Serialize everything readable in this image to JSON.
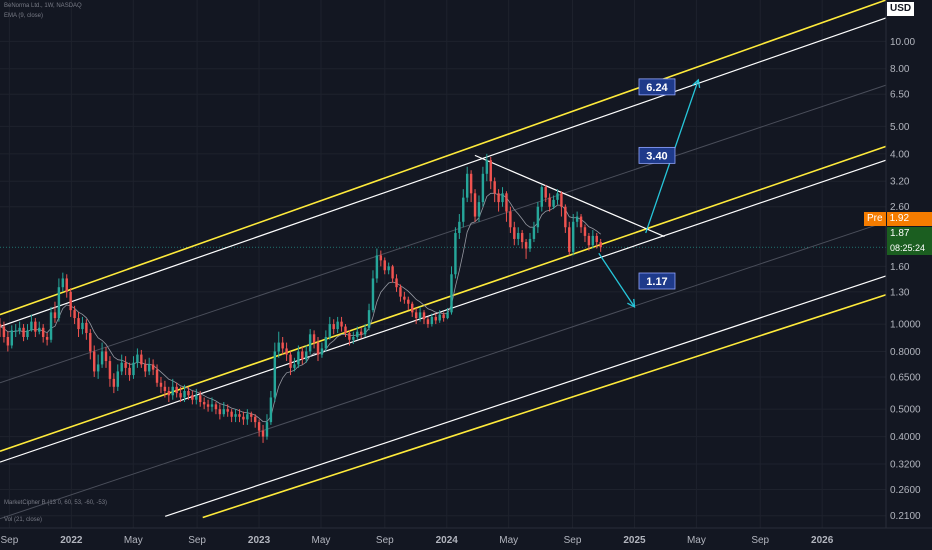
{
  "header": {
    "symbol_line": "BeNorma Ltd., 1W, NASDAQ",
    "indicator_ema": "EMA (9, close)",
    "indicator_market_cipher": "MarketCipher B (13 0, 60, 53, -60, -53)",
    "indicator_vol": "Vol (21, close)"
  },
  "price_scale": {
    "currency": "USD",
    "pre_label": "Pre",
    "pre_value": "1.92",
    "last_price": "1.87",
    "countdown": "08:25:24",
    "colors": {
      "pre_bg": "#f57c00",
      "last_bg": "#1b5e20",
      "currency_bg": "#ffffff"
    }
  },
  "chart_data": {
    "type": "candlestick",
    "y_scale": "log",
    "yticks": [
      "10.00",
      "8.00",
      "6.50",
      "5.00",
      "4.00",
      "3.20",
      "2.60",
      "1.60",
      "1.30",
      "1.0000",
      "0.8000",
      "0.6500",
      "0.5000",
      "0.4000",
      "0.3200",
      "0.2600",
      "0.2100"
    ],
    "ytick_values": [
      10,
      8,
      6.5,
      5,
      4,
      3.2,
      2.6,
      1.6,
      1.3,
      1,
      0.8,
      0.65,
      0.5,
      0.4,
      0.32,
      0.26,
      0.21
    ],
    "ylim": [
      0.19,
      14
    ],
    "xticks": [
      "Sep",
      "2022",
      "May",
      "Sep",
      "2023",
      "May",
      "Sep",
      "2024",
      "May",
      "Sep",
      "2025",
      "May",
      "Sep",
      "2026"
    ],
    "xtick_values": [
      2021.67,
      2022.0,
      2022.33,
      2022.67,
      2023.0,
      2023.33,
      2023.67,
      2024.0,
      2024.33,
      2024.67,
      2025.0,
      2025.33,
      2025.67,
      2026.0
    ],
    "xlim": [
      2021.62,
      2026.34
    ],
    "annotations": [
      {
        "label": "6.24",
        "x": 2025.12,
        "y": 6.9
      },
      {
        "label": "3.40",
        "x": 2025.12,
        "y": 3.95
      },
      {
        "label": "1.17",
        "x": 2025.12,
        "y": 1.42
      }
    ],
    "projection_arrows": [
      {
        "from": [
          2025.06,
          2.1
        ],
        "to": [
          2025.34,
          7.3
        ]
      },
      {
        "from": [
          2024.81,
          1.78
        ],
        "to": [
          2025.0,
          1.15
        ]
      }
    ],
    "channels": {
      "yellow": [
        {
          "from": [
            2021.62,
            1.08
          ],
          "to": [
            2026.34,
            14.0
          ]
        },
        {
          "from": [
            2021.62,
            0.355
          ],
          "to": [
            2026.34,
            4.25
          ]
        },
        {
          "from": [
            2022.7,
            0.207
          ],
          "to": [
            2026.34,
            1.27
          ]
        }
      ],
      "white": [
        {
          "from": [
            2021.62,
            0.98
          ],
          "to": [
            2026.34,
            12.1
          ]
        },
        {
          "from": [
            2021.62,
            0.325
          ],
          "to": [
            2026.34,
            3.8
          ]
        },
        {
          "from": [
            2022.5,
            0.209
          ],
          "to": [
            2026.34,
            1.48
          ]
        }
      ],
      "gray": [
        {
          "from": [
            2021.62,
            0.62
          ],
          "to": [
            2026.34,
            7.0
          ]
        },
        {
          "from": [
            2021.62,
            0.205
          ],
          "to": [
            2026.34,
            2.3
          ]
        }
      ],
      "downtrend": {
        "from": [
          2024.15,
          3.95
        ],
        "to": [
          2025.16,
          2.04
        ]
      }
    },
    "candles": [
      [
        1.0,
        0.98,
        1.05,
        0.9
      ],
      [
        0.98,
        0.9,
        1.02,
        0.86
      ],
      [
        0.9,
        0.84,
        0.94,
        0.8
      ],
      [
        0.84,
        0.95,
        0.99,
        0.82
      ],
      [
        0.95,
        0.95,
        1.0,
        0.9
      ],
      [
        0.95,
        0.97,
        1.02,
        0.92
      ],
      [
        0.97,
        0.9,
        1.0,
        0.87
      ],
      [
        0.9,
        0.95,
        1.0,
        0.88
      ],
      [
        0.95,
        1.02,
        1.08,
        0.94
      ],
      [
        1.02,
        0.94,
        1.05,
        0.9
      ],
      [
        0.94,
        0.97,
        1.02,
        0.92
      ],
      [
        0.97,
        0.9,
        1.0,
        0.86
      ],
      [
        0.9,
        0.88,
        0.93,
        0.84
      ],
      [
        0.88,
        1.1,
        1.15,
        0.86
      ],
      [
        1.1,
        1.05,
        1.2,
        1.01
      ],
      [
        1.05,
        1.35,
        1.45,
        1.02
      ],
      [
        1.35,
        1.45,
        1.52,
        1.3
      ],
      [
        1.45,
        1.3,
        1.5,
        1.24
      ],
      [
        1.3,
        1.12,
        1.34,
        1.06
      ],
      [
        1.12,
        1.05,
        1.16,
        1.0
      ],
      [
        1.05,
        0.96,
        1.1,
        0.9
      ],
      [
        0.96,
        1.01,
        1.06,
        0.92
      ],
      [
        1.01,
        0.93,
        1.04,
        0.88
      ],
      [
        0.93,
        0.8,
        0.96,
        0.75
      ],
      [
        0.8,
        0.68,
        0.84,
        0.65
      ],
      [
        0.68,
        0.72,
        0.78,
        0.64
      ],
      [
        0.72,
        0.8,
        0.86,
        0.7
      ],
      [
        0.8,
        0.74,
        0.83,
        0.7
      ],
      [
        0.74,
        0.64,
        0.77,
        0.6
      ],
      [
        0.64,
        0.6,
        0.67,
        0.57
      ],
      [
        0.6,
        0.68,
        0.72,
        0.58
      ],
      [
        0.68,
        0.73,
        0.78,
        0.66
      ],
      [
        0.73,
        0.7,
        0.77,
        0.66
      ],
      [
        0.7,
        0.66,
        0.73,
        0.63
      ],
      [
        0.66,
        0.73,
        0.77,
        0.64
      ],
      [
        0.73,
        0.78,
        0.82,
        0.7
      ],
      [
        0.78,
        0.72,
        0.81,
        0.7
      ],
      [
        0.72,
        0.68,
        0.75,
        0.65
      ],
      [
        0.68,
        0.72,
        0.76,
        0.66
      ],
      [
        0.72,
        0.69,
        0.75,
        0.66
      ],
      [
        0.69,
        0.62,
        0.72,
        0.6
      ],
      [
        0.62,
        0.6,
        0.65,
        0.57
      ],
      [
        0.6,
        0.58,
        0.63,
        0.55
      ],
      [
        0.58,
        0.56,
        0.6,
        0.53
      ],
      [
        0.56,
        0.6,
        0.64,
        0.54
      ],
      [
        0.6,
        0.57,
        0.62,
        0.55
      ],
      [
        0.57,
        0.55,
        0.6,
        0.53
      ],
      [
        0.55,
        0.58,
        0.61,
        0.53
      ],
      [
        0.58,
        0.56,
        0.6,
        0.54
      ],
      [
        0.56,
        0.54,
        0.58,
        0.52
      ],
      [
        0.54,
        0.56,
        0.59,
        0.52
      ],
      [
        0.56,
        0.53,
        0.58,
        0.51
      ],
      [
        0.53,
        0.52,
        0.55,
        0.5
      ],
      [
        0.52,
        0.51,
        0.54,
        0.49
      ],
      [
        0.51,
        0.52,
        0.55,
        0.49
      ],
      [
        0.52,
        0.5,
        0.53,
        0.48
      ],
      [
        0.5,
        0.48,
        0.52,
        0.46
      ],
      [
        0.48,
        0.5,
        0.53,
        0.47
      ],
      [
        0.5,
        0.49,
        0.52,
        0.47
      ],
      [
        0.49,
        0.47,
        0.5,
        0.45
      ],
      [
        0.47,
        0.48,
        0.5,
        0.45
      ],
      [
        0.48,
        0.47,
        0.5,
        0.45
      ],
      [
        0.47,
        0.46,
        0.49,
        0.44
      ],
      [
        0.46,
        0.48,
        0.5,
        0.44
      ],
      [
        0.48,
        0.47,
        0.49,
        0.45
      ],
      [
        0.47,
        0.45,
        0.48,
        0.43
      ],
      [
        0.45,
        0.42,
        0.46,
        0.4
      ],
      [
        0.42,
        0.4,
        0.44,
        0.38
      ],
      [
        0.4,
        0.45,
        0.48,
        0.39
      ],
      [
        0.45,
        0.55,
        0.58,
        0.44
      ],
      [
        0.55,
        0.8,
        0.86,
        0.53
      ],
      [
        0.8,
        0.86,
        0.94,
        0.76
      ],
      [
        0.86,
        0.82,
        0.9,
        0.78
      ],
      [
        0.82,
        0.78,
        0.86,
        0.74
      ],
      [
        0.78,
        0.7,
        0.8,
        0.66
      ],
      [
        0.7,
        0.72,
        0.76,
        0.68
      ],
      [
        0.72,
        0.8,
        0.84,
        0.7
      ],
      [
        0.8,
        0.75,
        0.83,
        0.72
      ],
      [
        0.75,
        0.8,
        0.84,
        0.73
      ],
      [
        0.8,
        0.92,
        0.96,
        0.78
      ],
      [
        0.92,
        0.86,
        0.95,
        0.82
      ],
      [
        0.86,
        0.78,
        0.9,
        0.74
      ],
      [
        0.78,
        0.82,
        0.86,
        0.76
      ],
      [
        0.82,
        0.9,
        0.95,
        0.8
      ],
      [
        0.9,
        1.0,
        1.06,
        0.88
      ],
      [
        1.0,
        0.96,
        1.04,
        0.92
      ],
      [
        0.96,
        1.02,
        1.06,
        0.93
      ],
      [
        1.02,
        0.98,
        1.06,
        0.94
      ],
      [
        0.98,
        0.93,
        1.0,
        0.9
      ],
      [
        0.93,
        0.88,
        0.95,
        0.84
      ],
      [
        0.88,
        0.9,
        0.94,
        0.85
      ],
      [
        0.9,
        0.94,
        0.98,
        0.88
      ],
      [
        0.94,
        0.92,
        0.97,
        0.89
      ],
      [
        0.92,
        0.97,
        1.0,
        0.9
      ],
      [
        0.97,
        1.12,
        1.18,
        0.95
      ],
      [
        1.12,
        1.45,
        1.55,
        1.1
      ],
      [
        1.45,
        1.75,
        1.85,
        1.4
      ],
      [
        1.75,
        1.68,
        1.82,
        1.6
      ],
      [
        1.68,
        1.55,
        1.72,
        1.5
      ],
      [
        1.55,
        1.6,
        1.65,
        1.5
      ],
      [
        1.6,
        1.45,
        1.62,
        1.4
      ],
      [
        1.45,
        1.35,
        1.5,
        1.3
      ],
      [
        1.35,
        1.25,
        1.38,
        1.2
      ],
      [
        1.25,
        1.22,
        1.3,
        1.18
      ],
      [
        1.22,
        1.18,
        1.25,
        1.12
      ],
      [
        1.18,
        1.1,
        1.2,
        1.06
      ],
      [
        1.1,
        1.05,
        1.14,
        1.0
      ],
      [
        1.05,
        1.1,
        1.15,
        1.02
      ],
      [
        1.1,
        1.04,
        1.12,
        1.0
      ],
      [
        1.04,
        1.0,
        1.06,
        0.97
      ],
      [
        1.0,
        1.06,
        1.09,
        0.98
      ],
      [
        1.06,
        1.03,
        1.09,
        1.0
      ],
      [
        1.03,
        1.08,
        1.12,
        1.01
      ],
      [
        1.08,
        1.05,
        1.1,
        1.02
      ],
      [
        1.05,
        1.1,
        1.14,
        1.04
      ],
      [
        1.1,
        1.5,
        1.6,
        1.08
      ],
      [
        1.5,
        2.1,
        2.2,
        1.45
      ],
      [
        2.1,
        2.3,
        2.45,
        2.0
      ],
      [
        2.3,
        2.8,
        3.0,
        2.2
      ],
      [
        2.8,
        3.4,
        3.6,
        2.7
      ],
      [
        3.4,
        2.9,
        3.5,
        2.7
      ],
      [
        2.9,
        2.4,
        3.0,
        2.3
      ],
      [
        2.4,
        2.7,
        2.85,
        2.3
      ],
      [
        2.7,
        3.4,
        3.6,
        2.6
      ],
      [
        3.4,
        3.8,
        4.0,
        3.2
      ],
      [
        3.8,
        3.2,
        3.9,
        3.0
      ],
      [
        3.2,
        2.9,
        3.3,
        2.7
      ],
      [
        2.9,
        2.7,
        3.0,
        2.5
      ],
      [
        2.7,
        2.9,
        3.05,
        2.6
      ],
      [
        2.9,
        2.5,
        2.95,
        2.3
      ],
      [
        2.5,
        2.2,
        2.6,
        2.1
      ],
      [
        2.2,
        2.0,
        2.3,
        1.9
      ],
      [
        2.0,
        2.1,
        2.2,
        1.9
      ],
      [
        2.1,
        1.95,
        2.15,
        1.85
      ],
      [
        1.95,
        1.85,
        2.0,
        1.7
      ],
      [
        1.85,
        2.0,
        2.1,
        1.8
      ],
      [
        2.0,
        2.2,
        2.3,
        1.95
      ],
      [
        2.2,
        2.6,
        2.7,
        2.1
      ],
      [
        2.6,
        3.05,
        3.1,
        2.5
      ],
      [
        3.05,
        2.8,
        3.1,
        2.7
      ],
      [
        2.8,
        2.6,
        2.9,
        2.5
      ],
      [
        2.6,
        2.75,
        2.85,
        2.55
      ],
      [
        2.75,
        2.9,
        3.0,
        2.65
      ],
      [
        2.9,
        2.6,
        2.95,
        2.4
      ],
      [
        2.6,
        2.2,
        2.65,
        2.1
      ],
      [
        2.2,
        1.8,
        2.3,
        1.75
      ],
      [
        1.8,
        2.3,
        2.45,
        1.75
      ],
      [
        2.3,
        2.4,
        2.5,
        2.2
      ],
      [
        2.4,
        2.2,
        2.45,
        2.1
      ],
      [
        2.2,
        2.05,
        2.25,
        1.95
      ],
      [
        2.05,
        1.9,
        2.1,
        1.82
      ],
      [
        1.9,
        2.05,
        2.15,
        1.85
      ],
      [
        2.05,
        1.95,
        2.1,
        1.85
      ],
      [
        1.95,
        1.87,
        2.0,
        1.8
      ]
    ],
    "candle_x_start": 2021.62,
    "candle_x_end": 2024.82,
    "colors": {
      "up": "#26a69a",
      "down": "#ef5350",
      "yellow": "#ffeb3b",
      "white": "#ffffff",
      "gray": "#787b86",
      "arrow": "#26c6da",
      "annotation_bg": "#1e3a8a"
    }
  }
}
